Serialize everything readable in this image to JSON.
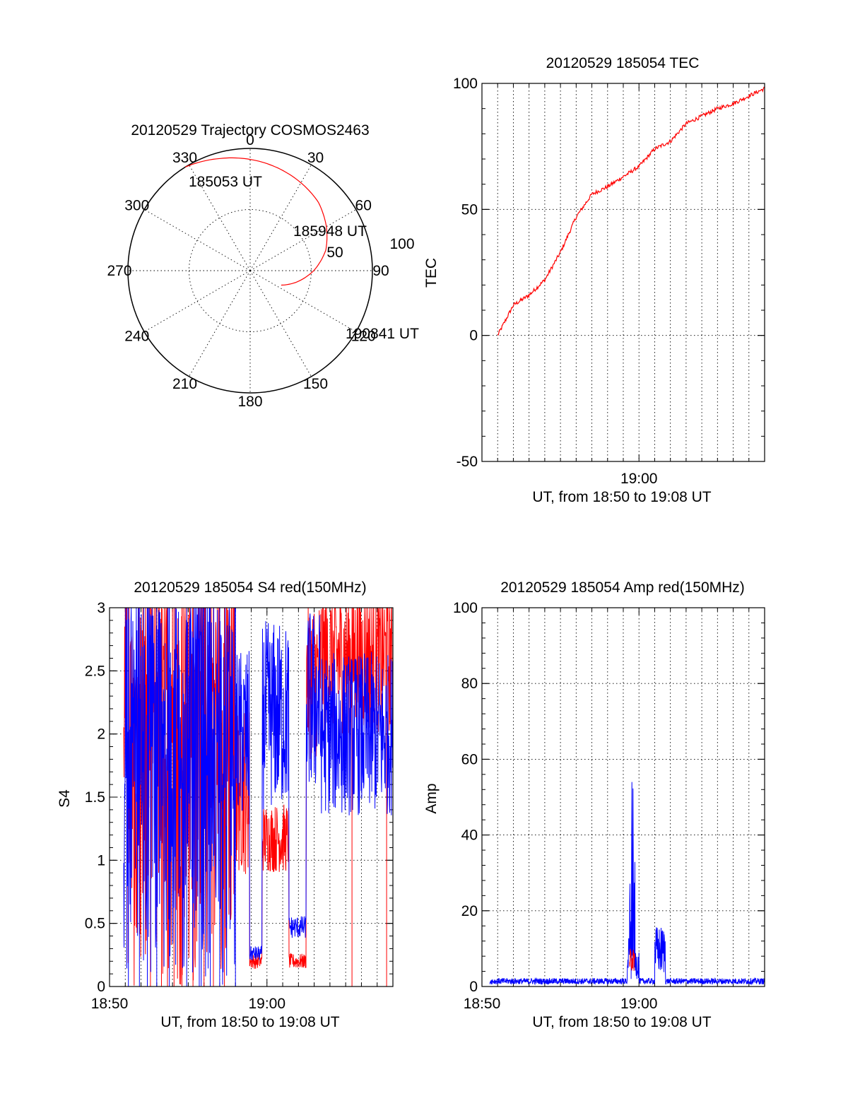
{
  "chart_data": [
    {
      "id": "trajectory",
      "type": "polar",
      "title": "20120529 Trajectory COSMOS2463",
      "angle_labels": [
        "0",
        "30",
        "60",
        "90",
        "120",
        "150",
        "180",
        "210",
        "240",
        "270",
        "300",
        "330"
      ],
      "radius_labels": [
        "50",
        "100"
      ],
      "rlim": [
        0,
        100
      ],
      "grid": true,
      "series": [
        {
          "color": "#ff0000",
          "azimuth": [
            328,
            345,
            0,
            15,
            30,
            45,
            60,
            75,
            90,
            105,
            115
          ],
          "elevation_offset": [
            0,
            5,
            9,
            13,
            17,
            21,
            28,
            36,
            48,
            62,
            72
          ]
        }
      ],
      "annotations": [
        {
          "text": "185053 UT",
          "az": 328,
          "r": 100
        },
        {
          "text": "185948 UT",
          "az": 55,
          "r": 82
        },
        {
          "text": "190841 UT",
          "az": 115,
          "r": 100
        }
      ]
    },
    {
      "id": "tec",
      "type": "line",
      "title": "20120529 185054 TEC",
      "xlabel": "UT, from 18:50 to 19:08 UT",
      "ylabel": "TEC",
      "xlim": [
        "18:50",
        "19:08"
      ],
      "xticks": [
        "19:00"
      ],
      "ylim": [
        -50,
        100
      ],
      "yticks": [
        -50,
        0,
        50,
        100
      ],
      "grid": true,
      "series": [
        {
          "color": "#ff0000",
          "x": [
            "18:51",
            "18:52",
            "18:53",
            "18:54",
            "18:55",
            "18:56",
            "18:57",
            "18:58",
            "18:59",
            "19:00",
            "19:01",
            "19:02",
            "19:03",
            "19:04",
            "19:05",
            "19:06",
            "19:07",
            "19:08"
          ],
          "y": [
            0,
            12,
            16,
            22,
            33,
            47,
            56,
            59,
            63,
            67,
            74,
            77,
            84,
            87,
            90,
            92,
            95,
            98
          ]
        }
      ]
    },
    {
      "id": "s4",
      "type": "line",
      "title": "20120529 185054 S4 red(150MHz)",
      "xlabel": "UT, from 18:50 to 19:08 UT",
      "ylabel": "S4",
      "xlim": [
        "18:50",
        "19:08"
      ],
      "xticks": [
        "18:50",
        "19:00"
      ],
      "ylim": [
        0,
        3
      ],
      "yticks": [
        0,
        0.5,
        1,
        1.5,
        2,
        2.5,
        3
      ],
      "grid": true,
      "series": [
        {
          "color": "#ff0000"
        },
        {
          "color": "#0000ff"
        }
      ]
    },
    {
      "id": "amp",
      "type": "line",
      "title": "20120529 185054 Amp red(150MHz)",
      "xlabel": "UT, from 18:50 to 19:08 UT",
      "ylabel": "Amp",
      "xlim": [
        "18:50",
        "19:08"
      ],
      "xticks": [
        "18:50",
        "19:00"
      ],
      "ylim": [
        0,
        100
      ],
      "yticks": [
        0,
        20,
        40,
        60,
        80,
        100
      ],
      "grid": true,
      "series": [
        {
          "color": "#0000ff"
        },
        {
          "color": "#ff0000"
        }
      ]
    }
  ]
}
